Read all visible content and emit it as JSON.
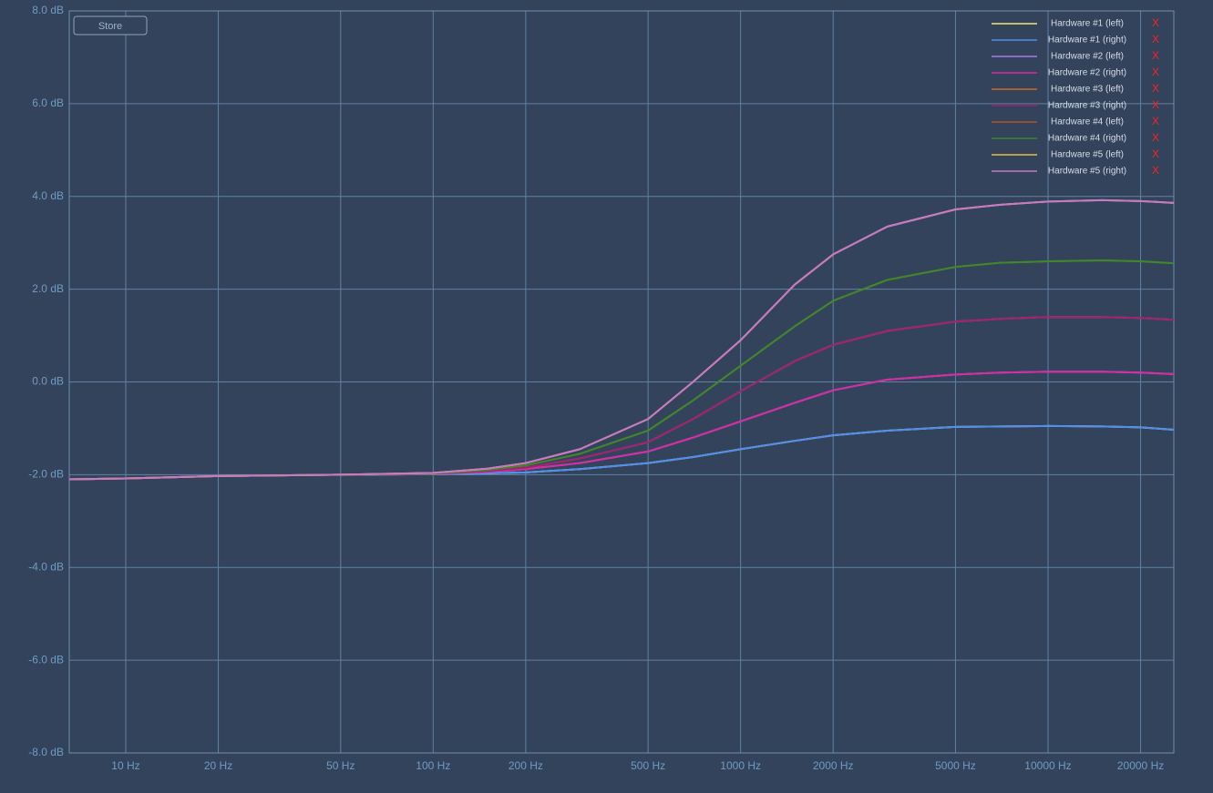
{
  "chart_data": {
    "type": "line",
    "button": "Store",
    "legend_remove": "X",
    "log_x": true,
    "grid": true,
    "legend_corner": "top-right",
    "xlim": [
      6.55,
      25650
    ],
    "ylim": [
      -8,
      8
    ],
    "xticks": [
      {
        "value": 10,
        "label": "10 Hz"
      },
      {
        "value": 20,
        "label": "20 Hz"
      },
      {
        "value": 50,
        "label": "50 Hz"
      },
      {
        "value": 100,
        "label": "100 Hz"
      },
      {
        "value": 200,
        "label": "200 Hz"
      },
      {
        "value": 500,
        "label": "500 Hz"
      },
      {
        "value": 1000,
        "label": "1000 Hz"
      },
      {
        "value": 2000,
        "label": "2000 Hz"
      },
      {
        "value": 5000,
        "label": "5000 Hz"
      },
      {
        "value": 10000,
        "label": "10000 Hz"
      },
      {
        "value": 20000,
        "label": "20000 Hz"
      }
    ],
    "yticks": [
      {
        "value": 8,
        "label": "8.0 dB"
      },
      {
        "value": 6,
        "label": "6.0 dB"
      },
      {
        "value": 4,
        "label": "4.0 dB"
      },
      {
        "value": 2,
        "label": "2.0 dB"
      },
      {
        "value": 0,
        "label": "0.0 dB"
      },
      {
        "value": -2,
        "label": "-2.0 dB"
      },
      {
        "value": -4,
        "label": "-4.0 dB"
      },
      {
        "value": -6,
        "label": "-6.0 dB"
      },
      {
        "value": -8,
        "label": "-8.0 dB"
      }
    ],
    "x": [
      6.55,
      10,
      20,
      50,
      100,
      150,
      200,
      300,
      500,
      700,
      1000,
      1500,
      2000,
      3000,
      5000,
      7000,
      10000,
      15000,
      20000,
      25650
    ],
    "series": [
      {
        "name": "Hardware #1 (left)",
        "color": "#f3e37a",
        "values": [
          -2.1,
          -2.08,
          -2.03,
          -2.0,
          -1.99,
          -1.97,
          -1.95,
          -1.88,
          -1.75,
          -1.62,
          -1.45,
          -1.27,
          -1.15,
          -1.05,
          -0.97,
          -0.96,
          -0.95,
          -0.96,
          -0.98,
          -1.03
        ]
      },
      {
        "name": "Hardware #1 (right)",
        "color": "#4d8ef0",
        "values": [
          -2.1,
          -2.08,
          -2.03,
          -2.0,
          -1.99,
          -1.97,
          -1.95,
          -1.88,
          -1.75,
          -1.62,
          -1.45,
          -1.27,
          -1.15,
          -1.05,
          -0.97,
          -0.96,
          -0.95,
          -0.96,
          -0.98,
          -1.03
        ]
      },
      {
        "name": "Hardware #2 (left)",
        "color": "#a77bea",
        "values": [
          -2.1,
          -2.08,
          -2.03,
          -2.0,
          -1.98,
          -1.94,
          -1.88,
          -1.75,
          -1.5,
          -1.2,
          -0.85,
          -0.45,
          -0.18,
          0.05,
          0.16,
          0.2,
          0.22,
          0.22,
          0.2,
          0.17
        ]
      },
      {
        "name": "Hardware #2 (right)",
        "color": "#d62ca0",
        "values": [
          -2.1,
          -2.08,
          -2.03,
          -2.0,
          -1.98,
          -1.94,
          -1.88,
          -1.75,
          -1.5,
          -1.2,
          -0.85,
          -0.45,
          -0.18,
          0.05,
          0.16,
          0.2,
          0.22,
          0.22,
          0.2,
          0.17
        ]
      },
      {
        "name": "Hardware #3 (left)",
        "color": "#d2691e",
        "values": [
          -2.1,
          -2.08,
          -2.03,
          -2.0,
          -1.98,
          -1.92,
          -1.85,
          -1.65,
          -1.3,
          -0.8,
          -0.2,
          0.45,
          0.8,
          1.1,
          1.3,
          1.36,
          1.4,
          1.4,
          1.38,
          1.34
        ]
      },
      {
        "name": "Hardware #3 (right)",
        "color": "#a0207a",
        "values": [
          -2.1,
          -2.08,
          -2.03,
          -2.0,
          -1.98,
          -1.92,
          -1.85,
          -1.65,
          -1.3,
          -0.8,
          -0.2,
          0.45,
          0.8,
          1.1,
          1.3,
          1.36,
          1.4,
          1.4,
          1.38,
          1.34
        ]
      },
      {
        "name": "Hardware #4 (left)",
        "color": "#b5502a",
        "values": [
          -2.1,
          -2.08,
          -2.03,
          -2.0,
          -1.97,
          -1.9,
          -1.8,
          -1.55,
          -1.05,
          -0.4,
          0.35,
          1.2,
          1.75,
          2.2,
          2.48,
          2.57,
          2.6,
          2.62,
          2.6,
          2.56
        ]
      },
      {
        "name": "Hardware #4 (right)",
        "color": "#3a8a2a",
        "values": [
          -2.1,
          -2.08,
          -2.03,
          -2.0,
          -1.97,
          -1.9,
          -1.8,
          -1.55,
          -1.05,
          -0.4,
          0.35,
          1.2,
          1.75,
          2.2,
          2.48,
          2.57,
          2.6,
          2.62,
          2.6,
          2.56
        ]
      },
      {
        "name": "Hardware #5 (left)",
        "color": "#e6c040",
        "values": [
          -2.1,
          -2.08,
          -2.03,
          -2.0,
          -1.96,
          -1.87,
          -1.75,
          -1.45,
          -0.8,
          0.0,
          0.9,
          2.1,
          2.75,
          3.35,
          3.72,
          3.82,
          3.89,
          3.92,
          3.9,
          3.86
        ]
      },
      {
        "name": "Hardware #5 (right)",
        "color": "#c878c8",
        "values": [
          -2.1,
          -2.08,
          -2.03,
          -2.0,
          -1.96,
          -1.87,
          -1.75,
          -1.45,
          -0.8,
          0.0,
          0.9,
          2.1,
          2.75,
          3.35,
          3.72,
          3.82,
          3.89,
          3.92,
          3.9,
          3.86
        ]
      }
    ]
  }
}
